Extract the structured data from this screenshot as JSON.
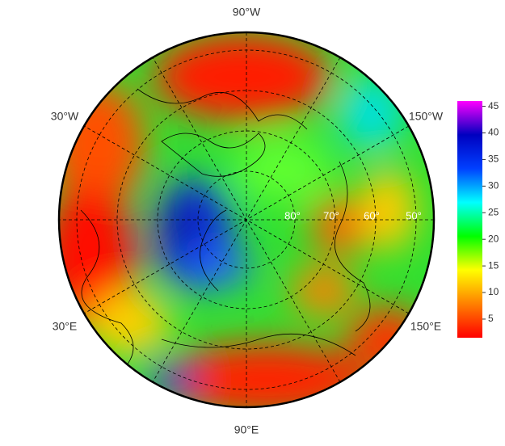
{
  "map": {
    "lon_labels": [
      "90°W",
      "30°W",
      "150°W",
      "30°E",
      "150°E",
      "90°E"
    ],
    "lat_labels": [
      "80°",
      "70°",
      "60°",
      "50°"
    ]
  },
  "colorbar": {
    "lim": [
      1.5,
      46
    ],
    "ticks": [
      5,
      10,
      15,
      20,
      25,
      30,
      35,
      40,
      45
    ],
    "colors": [
      "#ff0000",
      "#ff8000",
      "#ffff00",
      "#00ff00",
      "#00ffff",
      "#0040ff",
      "#0000c0",
      "#ff00ff"
    ]
  }
}
